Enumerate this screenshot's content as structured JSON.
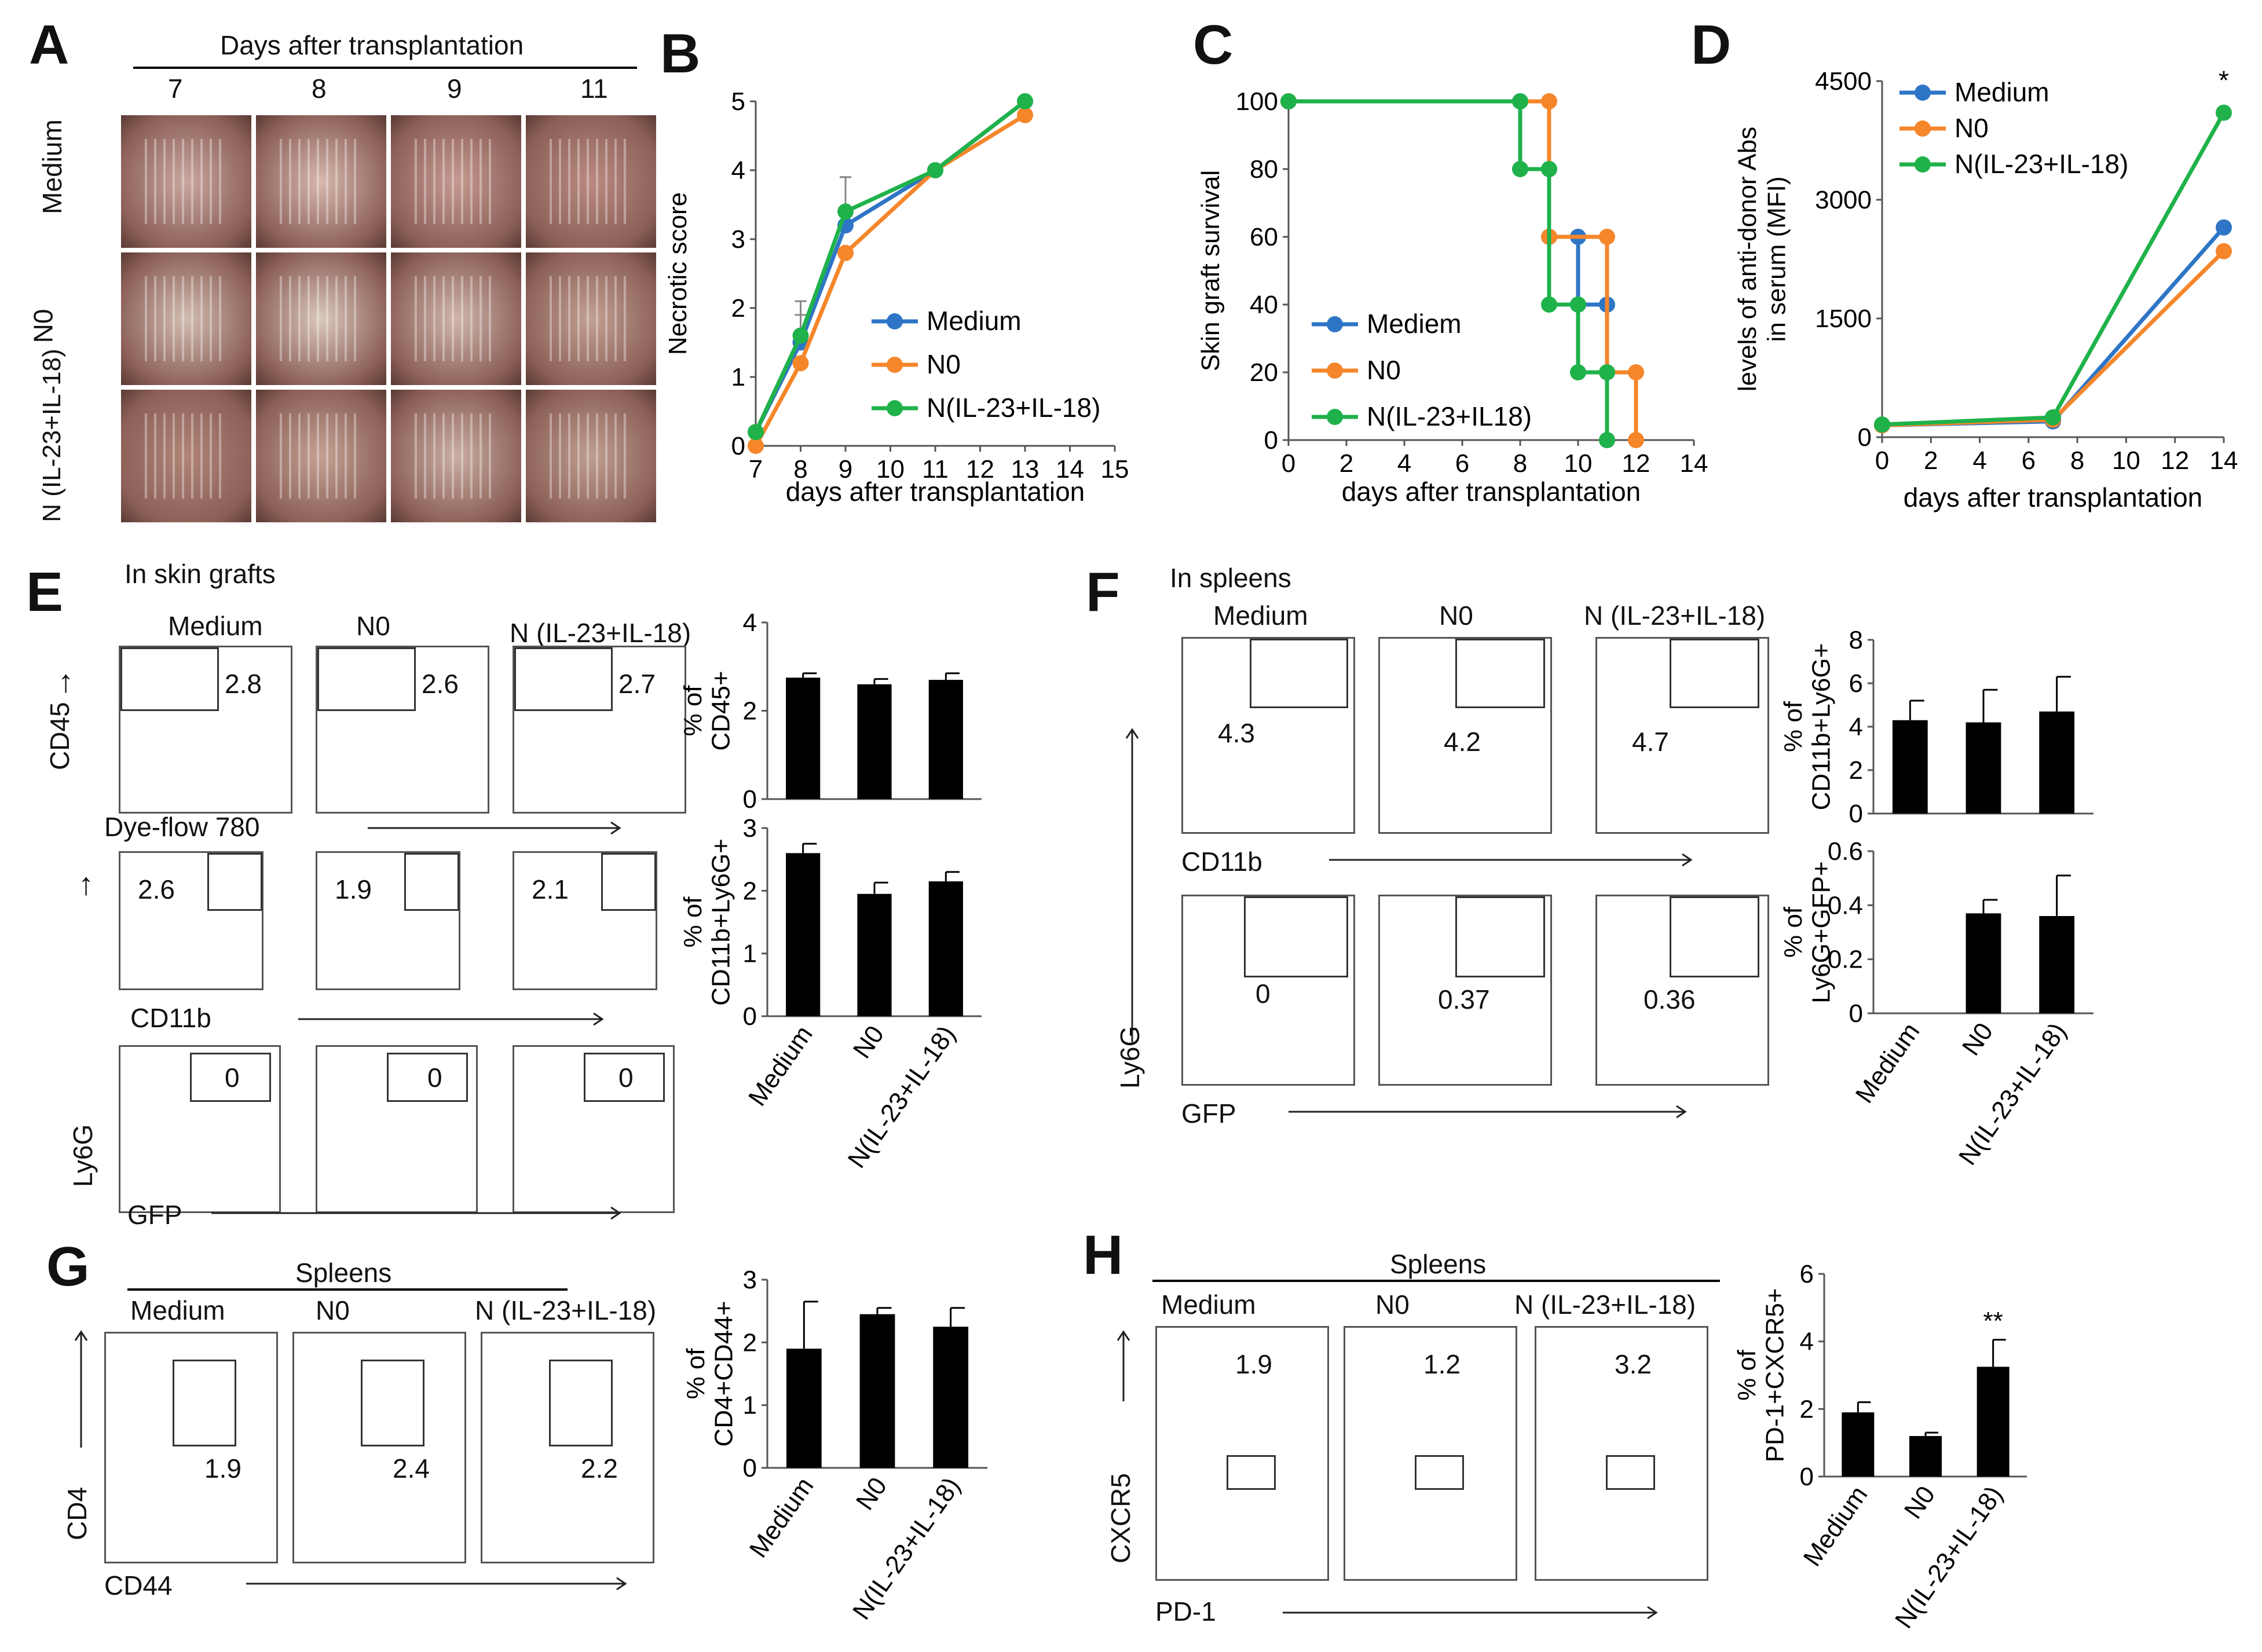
{
  "colors": {
    "medium": "#2e75c6",
    "n0": "#f5862a",
    "il": "#1fb24a",
    "bar": "#000000"
  },
  "panelA": {
    "label": "A",
    "header": "Days after transplantation",
    "days": [
      "7",
      "8",
      "9",
      "11"
    ],
    "rows": [
      "Medium",
      "N0",
      "N (IL-23+IL-18)"
    ],
    "photo_desc": "Skin graft photographs"
  },
  "panelB": {
    "label": "B"
  },
  "panelC": {
    "label": "C"
  },
  "panelD": {
    "label": "D"
  },
  "panelE": {
    "label": "E",
    "subtitle": "In skin grafts",
    "cols": [
      "Medium",
      "N0",
      "N (IL-23+IL-18)"
    ],
    "row1": {
      "yaxis": "CD45",
      "xaxis": "Dye-flow 780",
      "values": [
        "2.8",
        "2.6",
        "2.7"
      ]
    },
    "row2": {
      "xaxis": "CD11b",
      "values": [
        "2.6",
        "1.9",
        "2.1"
      ]
    },
    "row3": {
      "yaxis": "Ly6G",
      "xaxis": "GFP",
      "values": [
        "0",
        "0",
        "0"
      ]
    }
  },
  "panelF": {
    "label": "F",
    "subtitle": "In spleens",
    "cols": [
      "Medium",
      "N0",
      "N (IL-23+IL-18)"
    ],
    "row1": {
      "xaxis": "CD11b",
      "values": [
        "4.3",
        "4.2",
        "4.7"
      ]
    },
    "row2": {
      "yaxis": "Ly6G",
      "xaxis": "GFP",
      "values": [
        "0",
        "0.37",
        "0.36"
      ]
    }
  },
  "panelG": {
    "label": "G",
    "header": "Spleens",
    "cols": [
      "Medium",
      "N0",
      "N (IL-23+IL-18)"
    ],
    "yaxis": "CD4",
    "xaxis": "CD44",
    "values": [
      "1.9",
      "2.4",
      "2.2"
    ]
  },
  "panelH": {
    "label": "H",
    "header": "Spleens",
    "cols": [
      "Medium",
      "N0",
      "N (IL-23+IL-18)"
    ],
    "yaxis": "CXCR5",
    "xaxis": "PD-1",
    "values": [
      "1.9",
      "1.2",
      "3.2"
    ]
  },
  "chart_data": [
    {
      "id": "B",
      "type": "line",
      "xlabel": "days after transplantation",
      "ylabel": "Necrotic score",
      "xlim": [
        7,
        15
      ],
      "ylim": [
        0,
        5
      ],
      "xticks": [
        "7",
        "8",
        "9",
        "10",
        "11",
        "12",
        "13",
        "14",
        "15"
      ],
      "yticks": [
        "0",
        "1",
        "2",
        "3",
        "4",
        "5"
      ],
      "series": [
        {
          "name": "Medium",
          "key": "medium",
          "x": [
            7,
            8,
            9,
            11,
            13
          ],
          "y": [
            0.2,
            1.5,
            3.2,
            4.0,
            5.0
          ],
          "err": [
            0,
            0.4,
            0.7,
            0,
            0
          ]
        },
        {
          "name": "N0",
          "key": "n0",
          "x": [
            7,
            8,
            9,
            11,
            13
          ],
          "y": [
            0,
            1.2,
            2.8,
            4.0,
            4.8
          ],
          "err": [
            0,
            0,
            0,
            0,
            0
          ]
        },
        {
          "name": "N(IL-23+IL-18)",
          "key": "il",
          "x": [
            7,
            8,
            9,
            11,
            13
          ],
          "y": [
            0.2,
            1.6,
            3.4,
            4.0,
            5.0
          ],
          "err": [
            0,
            0.5,
            0.5,
            0,
            0
          ]
        }
      ],
      "legend": "center-right"
    },
    {
      "id": "C",
      "type": "line",
      "step": true,
      "xlabel": "days after transplantation",
      "ylabel": "Skin graft survival",
      "xlim": [
        0,
        14
      ],
      "ylim": [
        0,
        100
      ],
      "xticks": [
        "0",
        "2",
        "4",
        "6",
        "8",
        "10",
        "12",
        "14"
      ],
      "yticks": [
        "0",
        "20",
        "40",
        "60",
        "80",
        "100"
      ],
      "series": [
        {
          "name": "Mediem",
          "key": "medium",
          "x": [
            0,
            8,
            9,
            10,
            11
          ],
          "y": [
            100,
            80,
            60,
            40,
            0
          ]
        },
        {
          "name": "N0",
          "key": "n0",
          "x": [
            0,
            9,
            11,
            12
          ],
          "y": [
            100,
            60,
            20,
            0
          ]
        },
        {
          "name": "N(IL-23+IL18)",
          "key": "il",
          "x": [
            0,
            8,
            9,
            10,
            11
          ],
          "y": [
            100,
            80,
            40,
            20,
            0
          ]
        }
      ],
      "legend": "bottom-left"
    },
    {
      "id": "D",
      "type": "line",
      "xlabel": "days after transplantation",
      "ylabel": "levels of anti-donor Abs in serum (MFI)",
      "xlim": [
        0,
        14
      ],
      "ylim": [
        0,
        4500
      ],
      "xticks": [
        "0",
        "2",
        "4",
        "6",
        "8",
        "10",
        "12",
        "14"
      ],
      "yticks": [
        "0",
        "1500",
        "3000",
        "4500"
      ],
      "annotation": "*",
      "series": [
        {
          "name": "Medium",
          "key": "medium",
          "x": [
            0,
            7,
            14
          ],
          "y": [
            150,
            200,
            2650
          ]
        },
        {
          "name": "N0",
          "key": "n0",
          "x": [
            0,
            7,
            14
          ],
          "y": [
            150,
            220,
            2350
          ]
        },
        {
          "name": "N(IL-23+IL-18)",
          "key": "il",
          "x": [
            0,
            7,
            14
          ],
          "y": [
            160,
            250,
            4100
          ]
        }
      ],
      "legend": "top-left"
    },
    {
      "id": "E1",
      "type": "bar",
      "ylabel": "% of CD45+",
      "ylim": [
        0,
        4
      ],
      "yticks": [
        "0",
        "2",
        "4"
      ],
      "categories": [
        "Medium",
        "N0",
        "N(IL-23+IL-18)"
      ],
      "values": [
        2.75,
        2.6,
        2.7
      ],
      "err": [
        0.1,
        0.12,
        0.15
      ]
    },
    {
      "id": "E2",
      "type": "bar",
      "ylabel": "% of CD11b+Ly6G+",
      "ylim": [
        0,
        3
      ],
      "yticks": [
        "0",
        "1",
        "2",
        "3"
      ],
      "categories": [
        "Medium",
        "N0",
        "N(IL-23+IL-18)"
      ],
      "values": [
        2.6,
        1.95,
        2.15
      ],
      "err": [
        0.15,
        0.18,
        0.15
      ]
    },
    {
      "id": "F1",
      "type": "bar",
      "ylabel": "% of CD11b+Ly6G+",
      "ylim": [
        0,
        8
      ],
      "yticks": [
        "0",
        "2",
        "4",
        "6",
        "8"
      ],
      "categories": [
        "Medium",
        "N0",
        "N(IL-23+IL-18)"
      ],
      "values": [
        4.3,
        4.2,
        4.7
      ],
      "err": [
        0.9,
        1.5,
        1.6
      ]
    },
    {
      "id": "F2",
      "type": "bar",
      "ylabel": "% of Ly6G+GFP+",
      "ylim": [
        0,
        0.6
      ],
      "yticks": [
        "0",
        "0.2",
        "0.4",
        "0.6"
      ],
      "categories": [
        "Medium",
        "N0",
        "N(IL-23+IL-18)"
      ],
      "values": [
        0,
        0.37,
        0.36
      ],
      "err": [
        0,
        0.05,
        0.15
      ]
    },
    {
      "id": "G1",
      "type": "bar",
      "ylabel": "% of CD4+CD44+",
      "ylim": [
        0,
        3
      ],
      "yticks": [
        "0",
        "1",
        "2",
        "3"
      ],
      "categories": [
        "Medium",
        "N0",
        "N(IL-23+IL-18)"
      ],
      "values": [
        1.9,
        2.45,
        2.25
      ],
      "err": [
        0.75,
        0.1,
        0.3
      ]
    },
    {
      "id": "H1",
      "type": "bar",
      "ylabel": "% of PD-1+CXCR5+",
      "ylim": [
        0,
        6
      ],
      "yticks": [
        "0",
        "2",
        "4",
        "6"
      ],
      "categories": [
        "Medium",
        "N0",
        "N(IL-23+IL-18)"
      ],
      "values": [
        1.9,
        1.2,
        3.25
      ],
      "err": [
        0.3,
        0.1,
        0.8
      ],
      "annotation": "**"
    }
  ]
}
